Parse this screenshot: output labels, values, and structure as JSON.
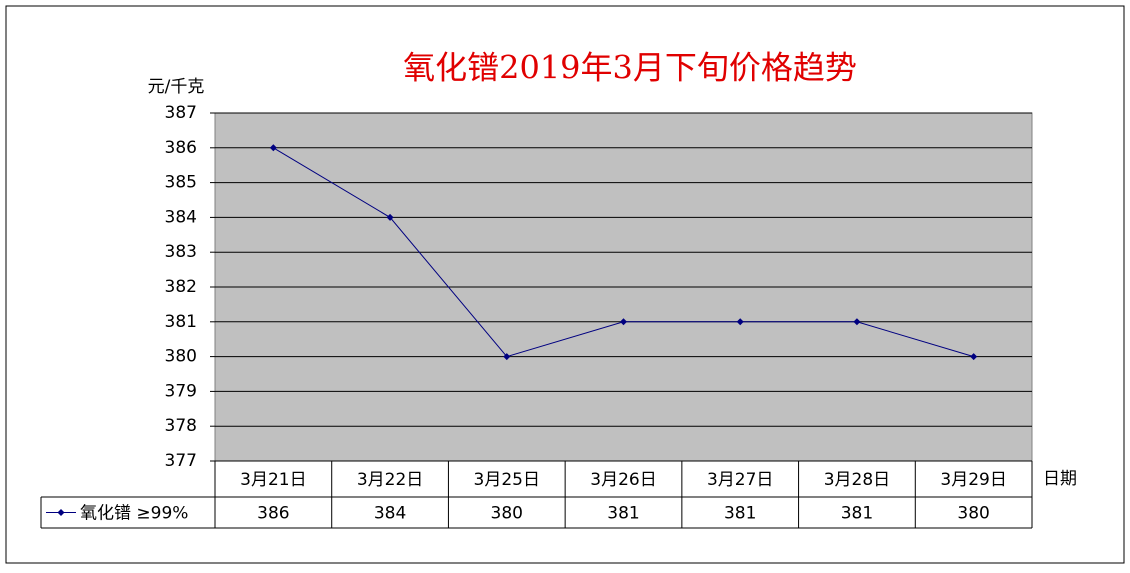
{
  "chart_data": {
    "type": "line",
    "title": "氧化镨2019年3月下旬价格趋势",
    "y_axis_label": "元/千克",
    "x_axis_label": "日期",
    "categories": [
      "3月21日",
      "3月22日",
      "3月25日",
      "3月26日",
      "3月27日",
      "3月28日",
      "3月29日"
    ],
    "series": [
      {
        "name": "氧化镨 ≥99%",
        "color": "#000080",
        "values": [
          386,
          384,
          380,
          381,
          381,
          381,
          380
        ]
      }
    ],
    "ylim": [
      377,
      387
    ],
    "yticks": [
      377,
      378,
      379,
      380,
      381,
      382,
      383,
      384,
      385,
      386,
      387
    ],
    "grid": true,
    "data_table": true
  }
}
